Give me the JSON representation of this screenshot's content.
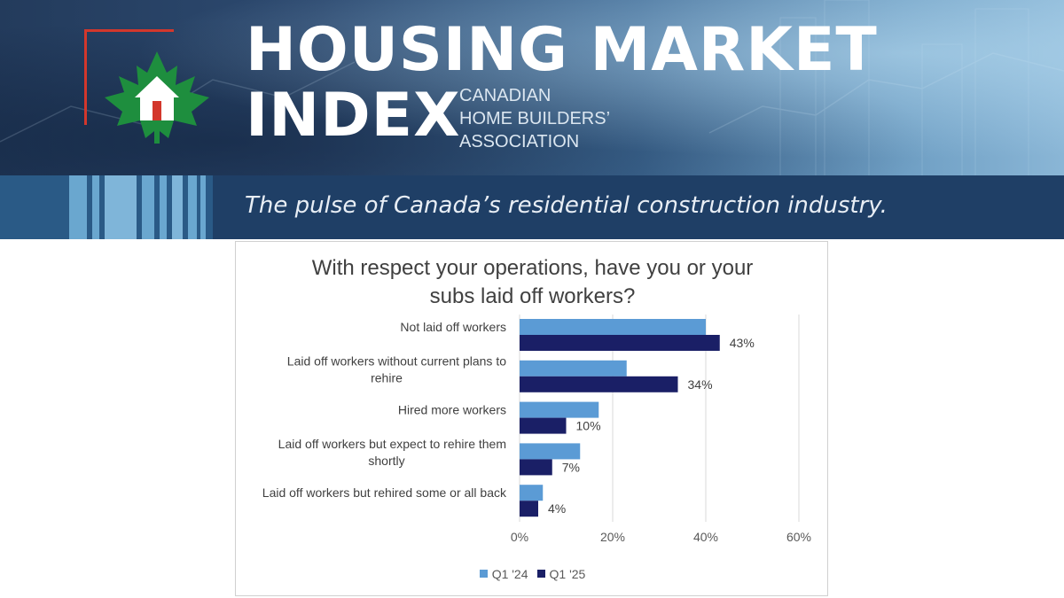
{
  "banner": {
    "title_line1": "HOUSING MARKET",
    "title_line2": "INDEX",
    "org_line1": "CANADIAN",
    "org_line2": "HOME BUILDERS’",
    "org_line3": "ASSOCIATION",
    "tagline": "The pulse of Canada’s residential construction industry.",
    "logo_icon": "maple-leaf-house-icon",
    "colors": {
      "leaf": "#1e8e3e",
      "accent_red": "#d3372c",
      "strip": "#1f3f66"
    }
  },
  "chart_data": {
    "type": "bar",
    "orientation": "horizontal",
    "title": "With respect your operations, have you or your subs laid off workers?",
    "title_lines": [
      "With respect your operations, have you or your",
      "subs laid off workers?"
    ],
    "categories": [
      "Not laid off workers",
      "Laid off workers without current plans to rehire",
      "Hired more workers",
      "Laid off workers but expect to rehire them shortly",
      "Laid off workers but rehired some or all back"
    ],
    "category_lines": [
      [
        "Not laid off workers"
      ],
      [
        "Laid off workers without current plans to",
        "rehire"
      ],
      [
        "Hired more workers"
      ],
      [
        "Laid off workers but expect to rehire them",
        "shortly"
      ],
      [
        "Laid off workers but rehired some or all back"
      ]
    ],
    "series": [
      {
        "name": "Q1 '24",
        "color": "#5b9bd5",
        "values": [
          40,
          23,
          17,
          13,
          5
        ],
        "show_labels": false
      },
      {
        "name": "Q1 '25",
        "color": "#1a1f66",
        "values": [
          43,
          34,
          10,
          7,
          4
        ],
        "show_labels": true
      }
    ],
    "data_labels": [
      "43%",
      "34%",
      "10%",
      "7%",
      "4%"
    ],
    "xlim": [
      0,
      60
    ],
    "xticks": [
      0,
      20,
      40,
      60
    ],
    "xtick_labels": [
      "0%",
      "20%",
      "40%",
      "60%"
    ],
    "grid": true,
    "legend_position": "bottom"
  }
}
